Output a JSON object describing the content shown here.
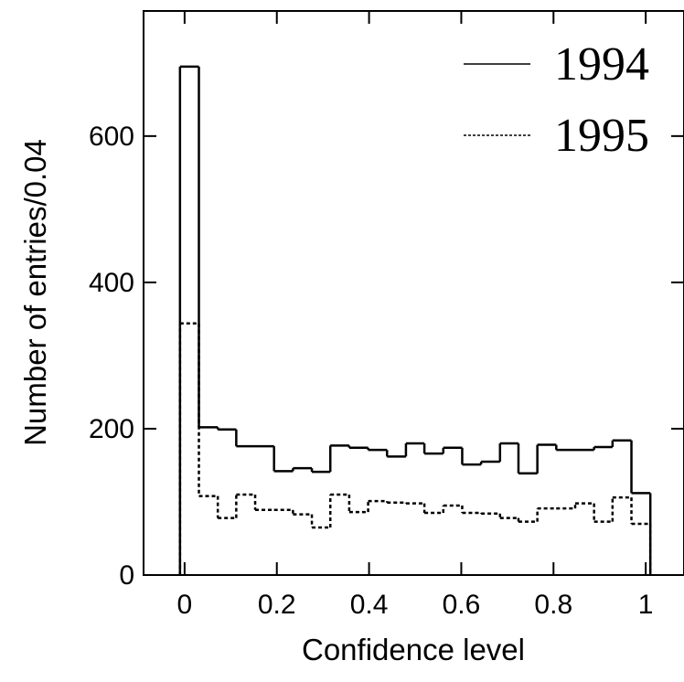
{
  "chart_data": {
    "type": "histogram",
    "x_label": "Confidence level",
    "y_label": "Number of entries/0.04",
    "bins": [
      -0.01,
      0.031,
      0.072,
      0.112,
      0.153,
      0.194,
      0.235,
      0.276,
      0.316,
      0.357,
      0.398,
      0.439,
      0.48,
      0.52,
      0.561,
      0.602,
      0.643,
      0.684,
      0.724,
      0.765,
      0.806,
      0.847,
      0.888,
      0.928,
      0.969,
      1.01
    ],
    "series": [
      {
        "name": "1994",
        "color": "#000000",
        "line_style": "solid",
        "values": [
          695,
          202,
          199,
          176,
          176,
          142,
          146,
          141,
          177,
          174,
          171,
          162,
          180,
          166,
          174,
          151,
          155,
          180,
          139,
          178,
          171,
          171,
          175,
          184,
          112
        ]
      },
      {
        "name": "1995",
        "color": "#000000",
        "line_style": "dotted",
        "values": [
          344,
          108,
          78,
          110,
          89,
          89,
          83,
          65,
          110,
          86,
          101,
          99,
          98,
          85,
          95,
          85,
          84,
          78,
          73,
          91,
          91,
          98,
          73,
          106,
          70
        ]
      }
    ],
    "xlim": [
      -0.089,
      1.083
    ],
    "ylim": [
      0,
      771
    ],
    "xticks": [
      0,
      0.2,
      0.4,
      0.6,
      0.8,
      1
    ],
    "yticks": [
      0,
      200,
      400,
      600
    ],
    "legend": "top-right"
  }
}
